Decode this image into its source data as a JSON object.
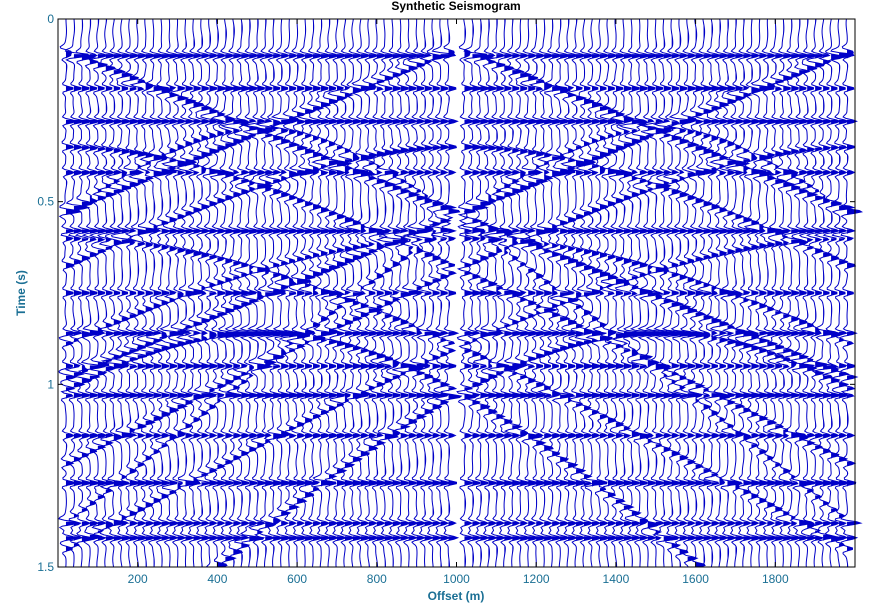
{
  "chart_data": {
    "type": "line",
    "title": "Synthetic Seismogram",
    "xlabel": "Offset (m)",
    "ylabel": "Time (s)",
    "xlim": [
      0,
      2000
    ],
    "ylim": [
      0,
      1.5
    ],
    "y_reversed": true,
    "x_ticks": [
      200,
      400,
      600,
      800,
      1000,
      1200,
      1400,
      1600,
      1800
    ],
    "x_tick_labels": [
      "200",
      "400",
      "600",
      "800",
      "1000",
      "1200",
      "1400",
      "1600",
      "1800"
    ],
    "y_ticks": [
      0,
      0.5,
      1,
      1.5
    ],
    "y_tick_labels": [
      "0",
      "0.5",
      "1",
      "1.5"
    ],
    "grid": false,
    "trace_spacing": 20,
    "trace_offset_first": 20,
    "trace_offset_last": 1980,
    "gap_offset": 1000,
    "fill": "positive",
    "reflection_times": [
      0.1,
      0.19,
      0.28,
      0.42,
      0.58,
      0.75,
      0.86,
      0.95,
      1.03,
      1.14,
      1.27,
      1.38,
      1.42
    ],
    "source_offsets": [
      0,
      1000,
      2000
    ],
    "diffractor_offsets": [
      500,
      1500
    ],
    "sampling_interval": 0.004
  },
  "colors": {
    "trace": "#0000c8",
    "fill": "#0000c8",
    "axis_text": "#1a6f94",
    "title": "#000000",
    "frame": "#000000",
    "background": "#ffffff"
  }
}
